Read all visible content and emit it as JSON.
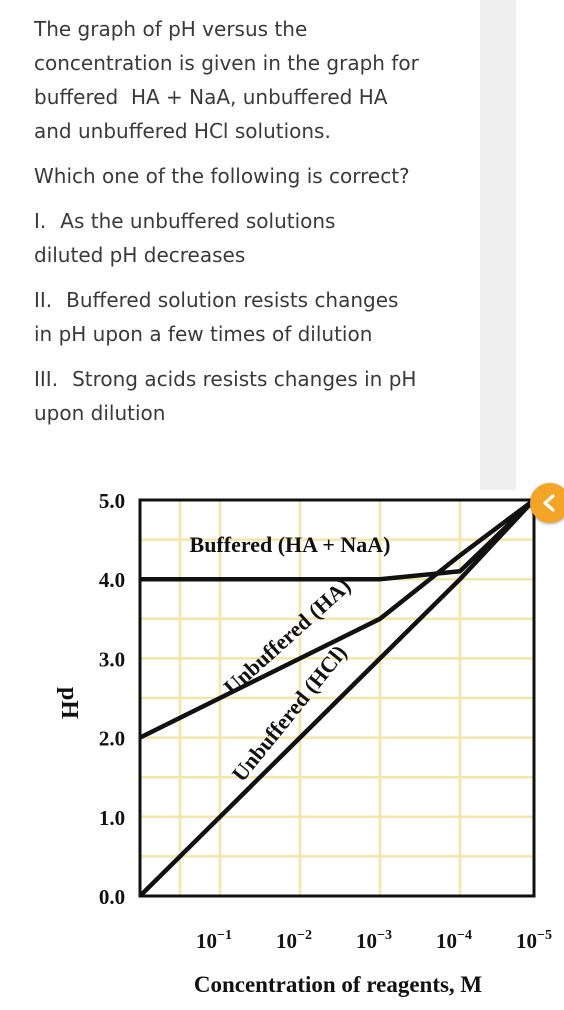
{
  "question": {
    "intro_lines": [
      "The graph of pH versus the",
      "concentration is given in the graph for",
      "buffered  HA + NaA, unbuffered HA",
      "and unbuffered HCl solutions."
    ],
    "prompt": "Which one of the following is correct?",
    "statements": [
      {
        "num": "I.",
        "line1": "As the unbuffered solutions",
        "line2": "diluted pH decreases"
      },
      {
        "num": "II.",
        "line1": "Buffered solution resists changes",
        "line2": "in pH upon a few times of dilution"
      },
      {
        "num": "III.",
        "line1": "Strong acids resists changes in pH",
        "line2": "upon dilution"
      }
    ]
  },
  "collapse_button": {
    "icon": "chevron-left-icon",
    "color": "#f4a526"
  },
  "chart_data": {
    "type": "line",
    "title": "",
    "xlabel": "Concentration of reagents, M",
    "ylabel": "pH",
    "x_tick_labels": [
      {
        "base": "10",
        "exp": "−1"
      },
      {
        "base": "10",
        "exp": "−2"
      },
      {
        "base": "10",
        "exp": "−3"
      },
      {
        "base": "10",
        "exp": "−4"
      },
      {
        "base": "10",
        "exp": "−5"
      }
    ],
    "y_ticks": [
      "5.0",
      "4.0",
      "3.0",
      "2.0",
      "1.0",
      "0.0"
    ],
    "ylim": [
      0,
      5
    ],
    "grid": true,
    "grid_color": "#f3e6a6",
    "series": [
      {
        "name": "Buffered (HA + NaA)",
        "x": [
          1,
          0.1,
          0.01,
          0.001,
          0.0001,
          1e-05
        ],
        "y": [
          4.0,
          4.0,
          4.0,
          4.0,
          4.1,
          5.0
        ]
      },
      {
        "name": "Unbuffered (HA)",
        "x": [
          1,
          0.1,
          0.01,
          0.001,
          0.0001,
          1e-05
        ],
        "y": [
          2.0,
          2.5,
          3.0,
          3.5,
          4.3,
          5.0
        ]
      },
      {
        "name": "Unbuffered (HCl)",
        "x": [
          1,
          0.1,
          0.01,
          0.001,
          0.0001,
          1e-05
        ],
        "y": [
          0.0,
          1.0,
          2.0,
          3.0,
          4.0,
          5.0
        ]
      }
    ]
  }
}
